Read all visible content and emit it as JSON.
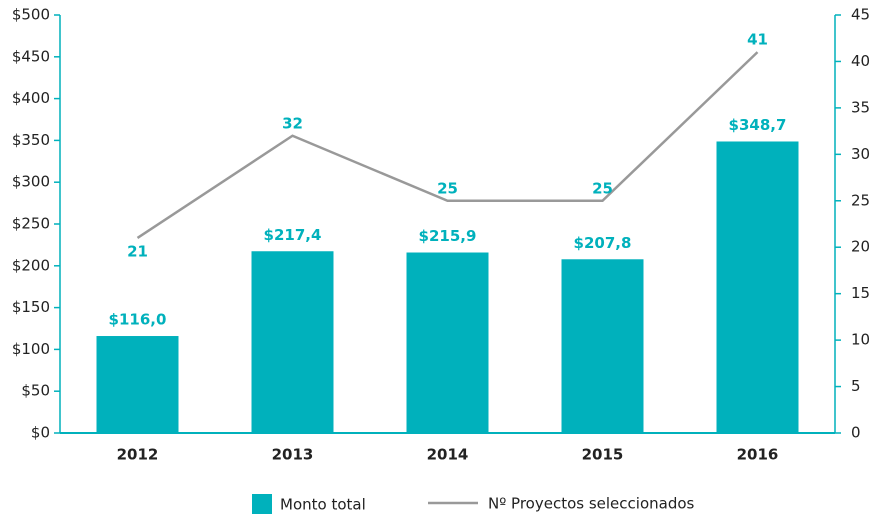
{
  "chart_data": {
    "type": "bar",
    "categories": [
      "2012",
      "2013",
      "2014",
      "2015",
      "2016"
    ],
    "series": [
      {
        "name": "Monto total",
        "type": "bar",
        "color": "#00b1bc",
        "values": [
          116.0,
          217.4,
          215.9,
          207.8,
          348.7
        ],
        "value_labels": [
          "$116,0",
          "$217,4",
          "$215,9",
          "$207,8",
          "$348,7"
        ]
      },
      {
        "name": "Nº Proyectos seleccionados",
        "type": "line",
        "axis": "y2",
        "color": "#999999",
        "values": [
          21,
          32,
          25,
          25,
          41
        ]
      }
    ],
    "ylim": [
      0,
      500
    ],
    "yticks": [
      {
        "value": 0,
        "label": "$0"
      },
      {
        "value": 50,
        "label": "$50"
      },
      {
        "value": 100,
        "label": "$100"
      },
      {
        "value": 150,
        "label": "$150"
      },
      {
        "value": 200,
        "label": "$200"
      },
      {
        "value": 250,
        "label": "$250"
      },
      {
        "value": 300,
        "label": "$300"
      },
      {
        "value": 350,
        "label": "$350"
      },
      {
        "value": 400,
        "label": "$400"
      },
      {
        "value": 450,
        "label": "$450"
      },
      {
        "value": 500,
        "label": "$500"
      }
    ],
    "y2lim": [
      0,
      45
    ],
    "y2ticks": [
      0,
      5,
      10,
      15,
      20,
      25,
      30,
      35,
      40,
      45
    ],
    "legend": "bottom"
  }
}
